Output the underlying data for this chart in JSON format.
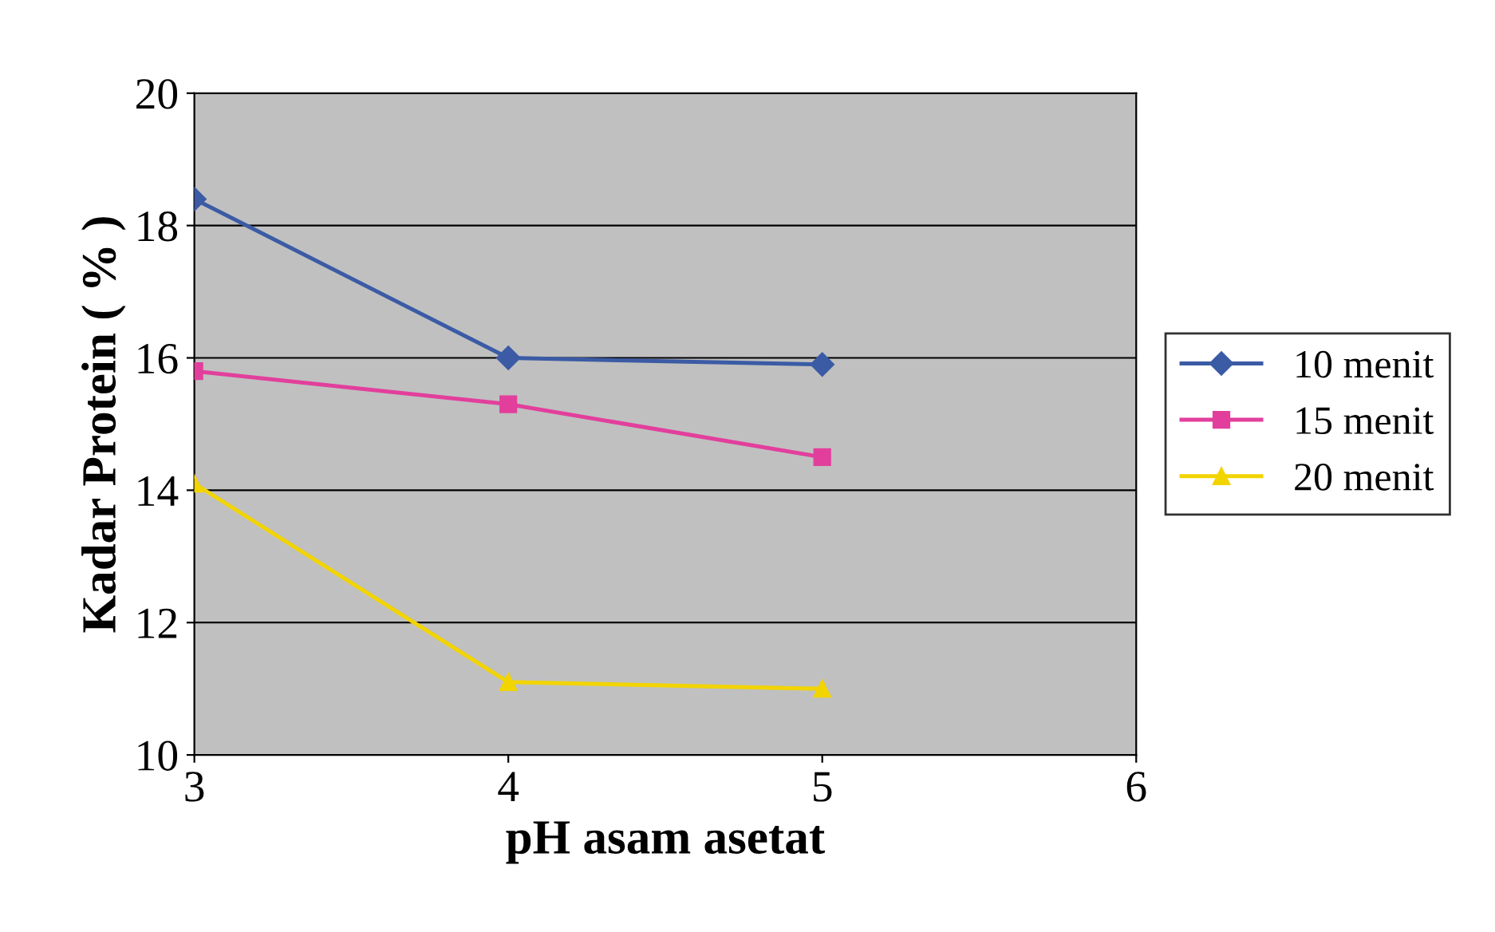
{
  "chart_data": {
    "type": "line",
    "xlabel": "pH asam asetat",
    "ylabel": "Kadar Protein ( % )",
    "x": [
      3,
      4,
      5
    ],
    "series": [
      {
        "name": "10 menit",
        "color": "#3b5ba5",
        "marker": "diamond",
        "values": [
          18.4,
          16.0,
          15.9
        ]
      },
      {
        "name": "15 menit",
        "color": "#e23f9c",
        "marker": "square",
        "values": [
          15.8,
          15.3,
          14.5
        ]
      },
      {
        "name": "20 menit",
        "color": "#f2d400",
        "marker": "triangle",
        "values": [
          14.1,
          11.1,
          11.0
        ]
      }
    ],
    "xlim": [
      3,
      6
    ],
    "xticks": [
      3,
      4,
      5,
      6
    ],
    "ylim": [
      10,
      20
    ],
    "yticks": [
      10,
      12,
      14,
      16,
      18,
      20
    ],
    "grid": "y",
    "legend": "right"
  }
}
